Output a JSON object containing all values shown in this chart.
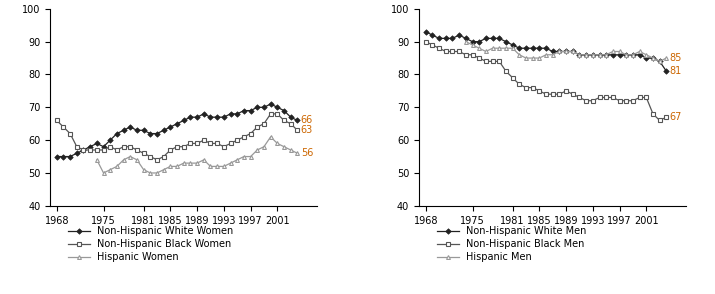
{
  "years": [
    1968,
    1969,
    1970,
    1971,
    1972,
    1973,
    1974,
    1975,
    1976,
    1977,
    1978,
    1979,
    1980,
    1981,
    1982,
    1983,
    1984,
    1985,
    1986,
    1987,
    1988,
    1989,
    1990,
    1991,
    1992,
    1993,
    1994,
    1995,
    1996,
    1997,
    1998,
    1999,
    2000,
    2001,
    2002,
    2003,
    2004
  ],
  "women_white": [
    55,
    55,
    55,
    56,
    57,
    58,
    59,
    58,
    60,
    62,
    63,
    64,
    63,
    63,
    62,
    62,
    63,
    64,
    65,
    66,
    67,
    67,
    68,
    67,
    67,
    67,
    68,
    68,
    69,
    69,
    70,
    70,
    71,
    70,
    69,
    67,
    66
  ],
  "women_black": [
    66,
    64,
    62,
    58,
    57,
    57,
    57,
    57,
    58,
    57,
    58,
    58,
    57,
    56,
    55,
    54,
    55,
    57,
    58,
    58,
    59,
    59,
    60,
    59,
    59,
    58,
    59,
    60,
    61,
    62,
    64,
    65,
    68,
    68,
    66,
    65,
    63
  ],
  "women_hisp": [
    null,
    null,
    null,
    null,
    null,
    null,
    54,
    50,
    51,
    52,
    54,
    55,
    54,
    51,
    50,
    50,
    51,
    52,
    52,
    53,
    53,
    53,
    54,
    52,
    52,
    52,
    53,
    54,
    55,
    55,
    57,
    58,
    61,
    59,
    58,
    57,
    56
  ],
  "men_white": [
    93,
    92,
    91,
    91,
    91,
    92,
    91,
    90,
    90,
    91,
    91,
    91,
    90,
    89,
    88,
    88,
    88,
    88,
    88,
    87,
    87,
    87,
    87,
    86,
    86,
    86,
    86,
    86,
    86,
    86,
    86,
    86,
    86,
    85,
    85,
    84,
    81
  ],
  "men_black": [
    90,
    89,
    88,
    87,
    87,
    87,
    86,
    86,
    85,
    84,
    84,
    84,
    81,
    79,
    77,
    76,
    76,
    75,
    74,
    74,
    74,
    75,
    74,
    73,
    72,
    72,
    73,
    73,
    73,
    72,
    72,
    72,
    73,
    73,
    68,
    66,
    67
  ],
  "men_hisp": [
    null,
    null,
    null,
    null,
    null,
    null,
    90,
    89,
    88,
    87,
    88,
    88,
    88,
    88,
    86,
    85,
    85,
    85,
    86,
    86,
    87,
    87,
    87,
    86,
    86,
    86,
    86,
    86,
    87,
    87,
    86,
    86,
    87,
    86,
    85,
    84,
    85
  ],
  "end_labels_women": {
    "white": 66,
    "black": 63,
    "hisp": 56
  },
  "end_labels_men": {
    "white": 81,
    "black": 67,
    "hisp": 85
  },
  "ylim_women": [
    40,
    100
  ],
  "ylim_men": [
    40,
    100
  ],
  "yticks_women": [
    40,
    50,
    60,
    70,
    80,
    90,
    100
  ],
  "yticks_men": [
    40,
    50,
    60,
    70,
    80,
    90,
    100
  ],
  "xticks": [
    1968,
    1975,
    1981,
    1985,
    1989,
    1993,
    1997,
    2001
  ],
  "color_white": "#222222",
  "color_black": "#555555",
  "color_hisp": "#999999",
  "label_white_women": "Non-Hispanic White Women",
  "label_black_women": "Non-Hispanic Black Women",
  "label_hisp_women": "Hispanic Women",
  "label_white_men": "Non-Hispanic White Men",
  "label_black_men": "Non-Hispanic Black Men",
  "label_hisp_men": "Hispanic Men",
  "marker_white": "D",
  "marker_black": "s",
  "marker_hisp": "^",
  "markersize": 2.8,
  "linewidth": 0.9,
  "label_color": "#cc6600",
  "tick_fontsize": 7,
  "legend_fontsize": 7
}
